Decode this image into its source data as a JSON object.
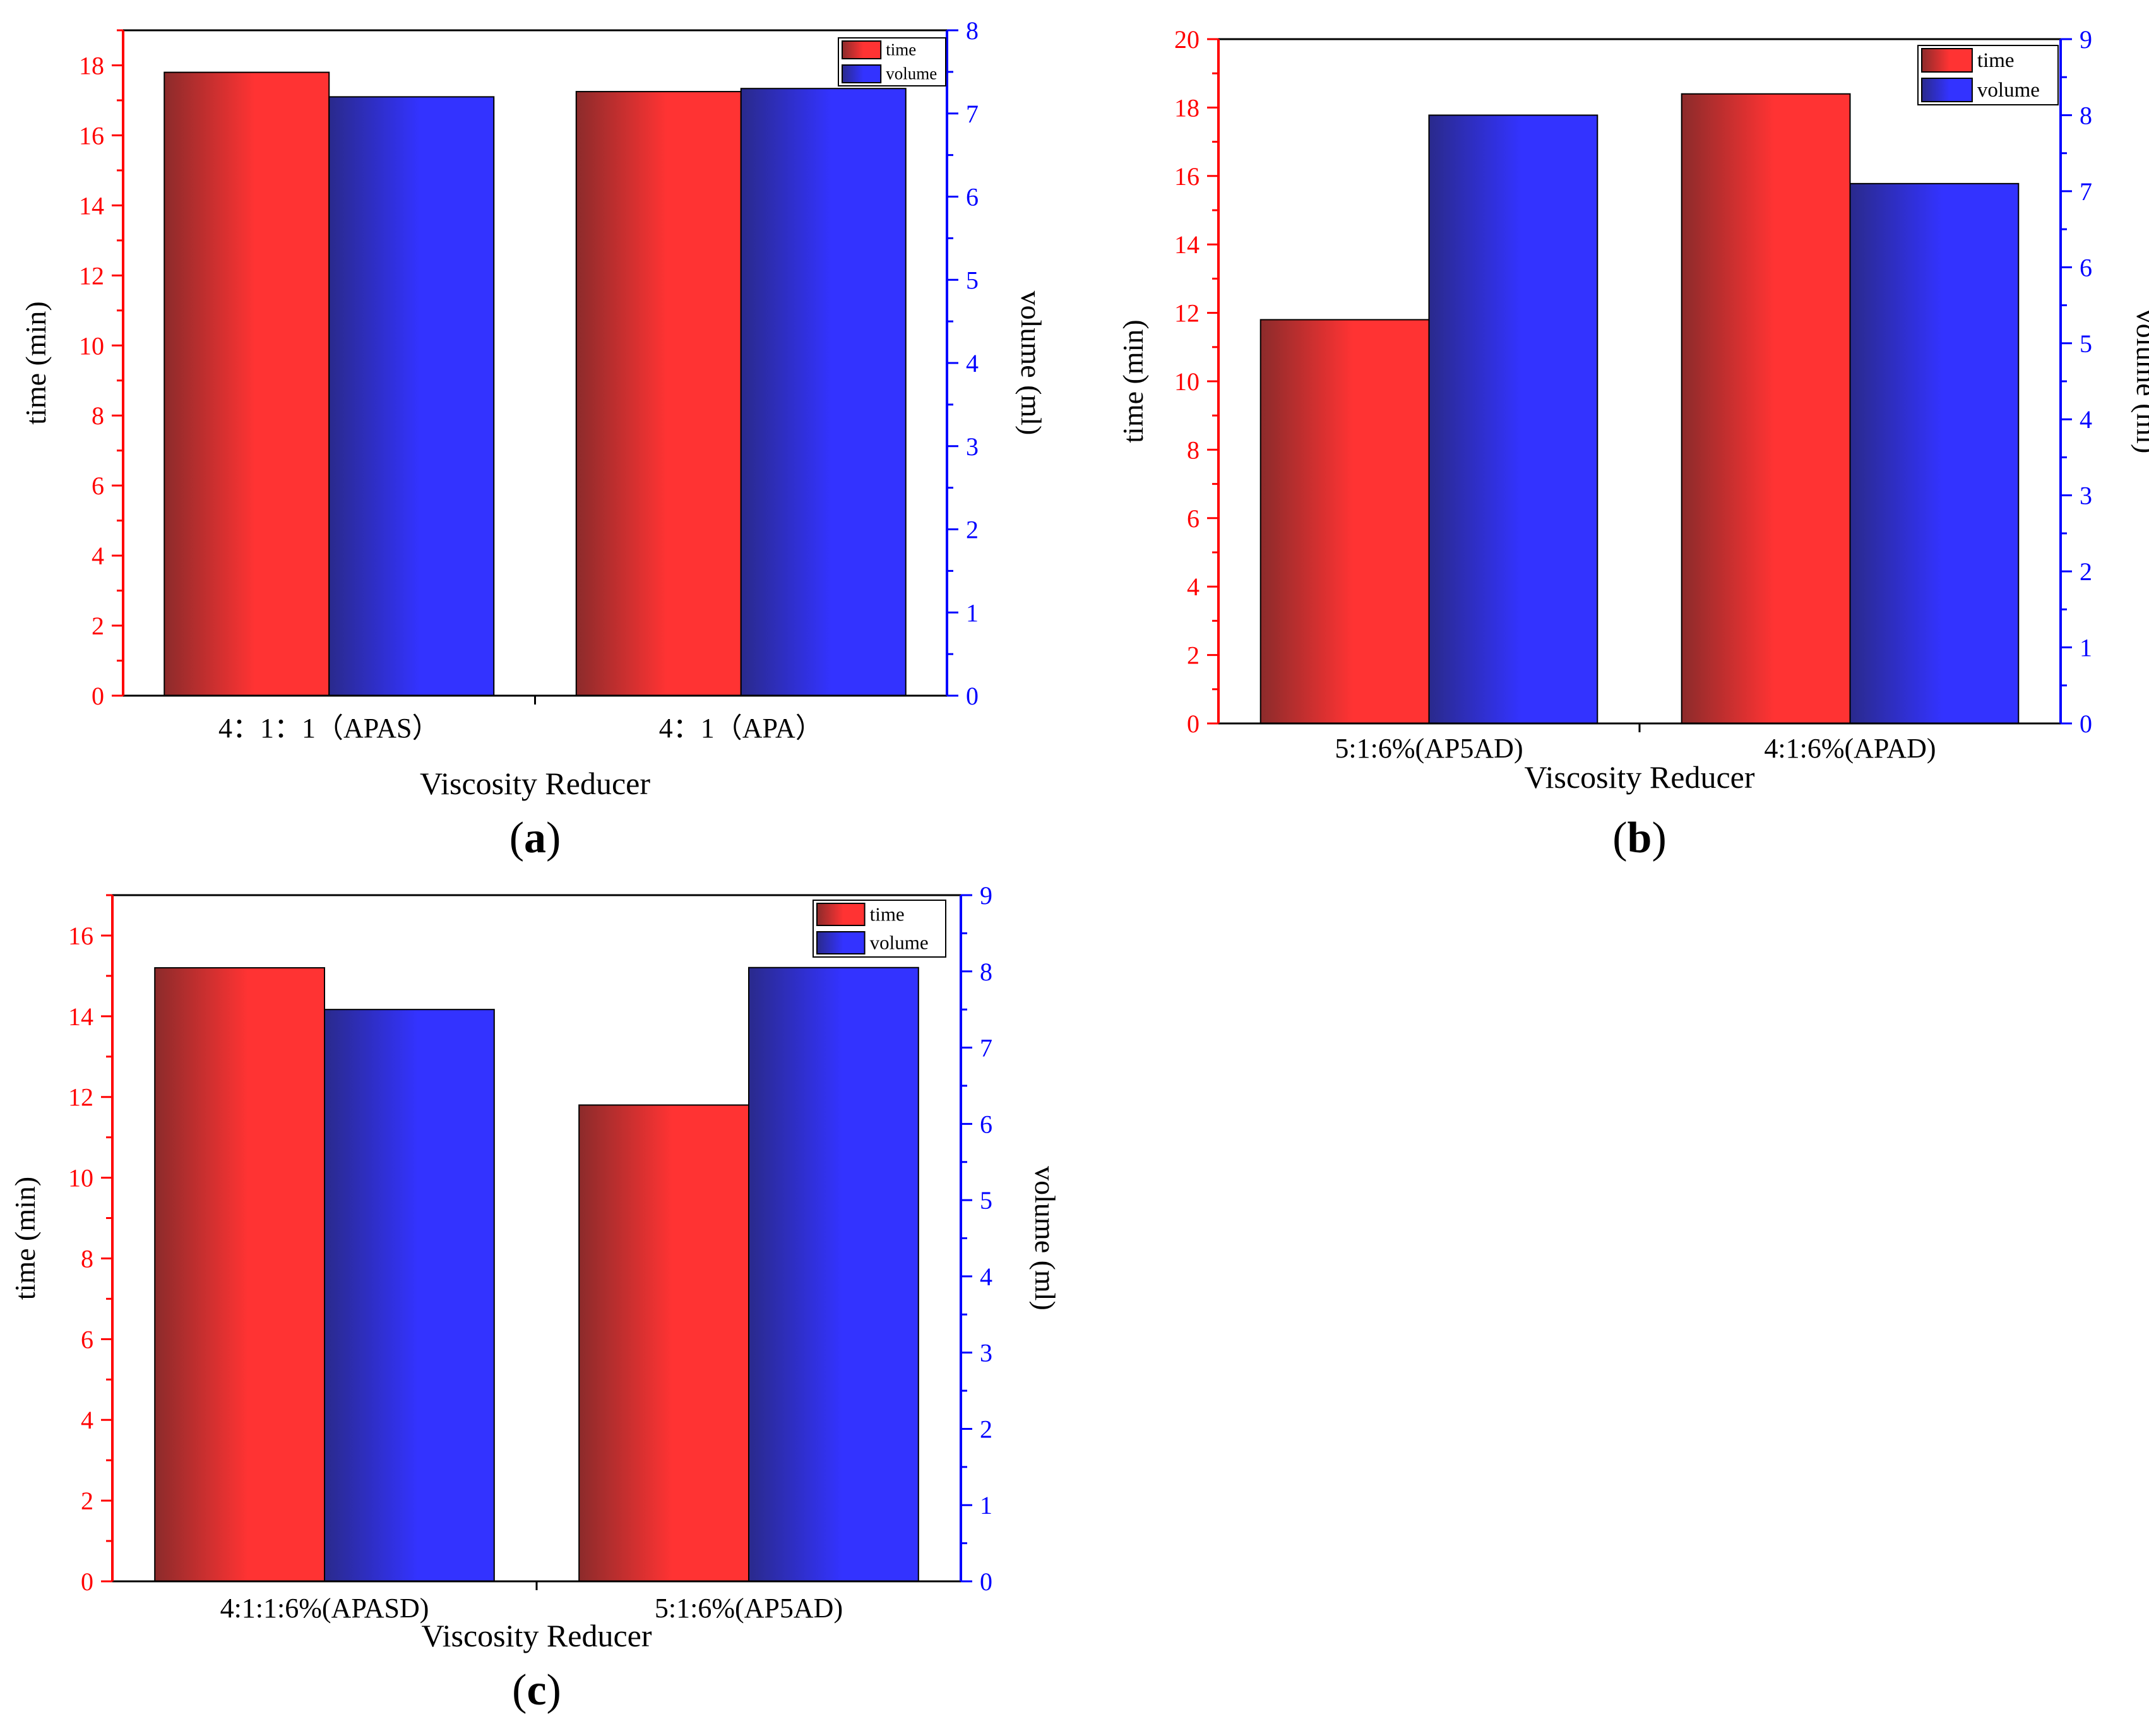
{
  "colors": {
    "time": "#ff3333",
    "time_dark": "#8c2b2b",
    "volume": "#3333ff",
    "volume_dark": "#2a2a8c",
    "left_axis": "#ff0000",
    "right_axis": "#0000ff",
    "frame": "#000000"
  },
  "chart_data": [
    {
      "id": "a",
      "type": "bar",
      "panel_label": "(a)",
      "panel_letter": "a",
      "xlabel": "Viscosity Reducer",
      "ylabel": "time (min)",
      "y2label": "volume (ml)",
      "categories": [
        "4：1：1（APAS）",
        "4：1（APA）"
      ],
      "ylim": [
        0,
        19
      ],
      "yticks": [
        0,
        2,
        4,
        6,
        8,
        10,
        12,
        14,
        16,
        18
      ],
      "y2lim": [
        0,
        8
      ],
      "y2ticks": [
        0,
        1,
        2,
        3,
        4,
        5,
        6,
        7,
        8
      ],
      "legend": [
        "time",
        "volume"
      ],
      "legend_position": "top-right",
      "series": [
        {
          "name": "time",
          "axis": "left",
          "values": [
            17.8,
            17.25
          ]
        },
        {
          "name": "volume",
          "axis": "right",
          "values": [
            7.2,
            7.3
          ]
        }
      ]
    },
    {
      "id": "b",
      "type": "bar",
      "panel_label": "(b)",
      "panel_letter": "b",
      "xlabel": "Viscosity Reducer",
      "ylabel": "time (min)",
      "y2label": "volume (ml)",
      "categories": [
        "5:1:6%(AP5AD)",
        "4:1:6%(APAD)"
      ],
      "ylim": [
        0,
        20
      ],
      "yticks": [
        0,
        2,
        4,
        6,
        8,
        10,
        12,
        14,
        16,
        18,
        20
      ],
      "y2lim": [
        0,
        9
      ],
      "y2ticks": [
        0,
        1,
        2,
        3,
        4,
        5,
        6,
        7,
        8,
        9
      ],
      "legend": [
        "time",
        "volume"
      ],
      "legend_position": "top-right",
      "series": [
        {
          "name": "time",
          "axis": "left",
          "values": [
            11.8,
            18.4
          ]
        },
        {
          "name": "volume",
          "axis": "right",
          "values": [
            8.0,
            7.1
          ]
        }
      ]
    },
    {
      "id": "c",
      "type": "bar",
      "panel_label": "(c)",
      "panel_letter": "c",
      "xlabel": "Viscosity Reducer",
      "ylabel": "time (min)",
      "y2label": "volume (ml)",
      "categories": [
        "4:1:1:6%(APASD)",
        "5:1:6%(AP5AD)"
      ],
      "ylim": [
        0,
        17
      ],
      "yticks": [
        0,
        2,
        4,
        6,
        8,
        10,
        12,
        14,
        16
      ],
      "y2lim": [
        0,
        9
      ],
      "y2ticks": [
        0,
        1,
        2,
        3,
        4,
        5,
        6,
        7,
        8,
        9
      ],
      "legend": [
        "time",
        "volume"
      ],
      "legend_position": "top-right",
      "series": [
        {
          "name": "time",
          "axis": "left",
          "values": [
            15.2,
            11.8
          ]
        },
        {
          "name": "volume",
          "axis": "right",
          "values": [
            7.5,
            8.05
          ]
        }
      ]
    }
  ]
}
